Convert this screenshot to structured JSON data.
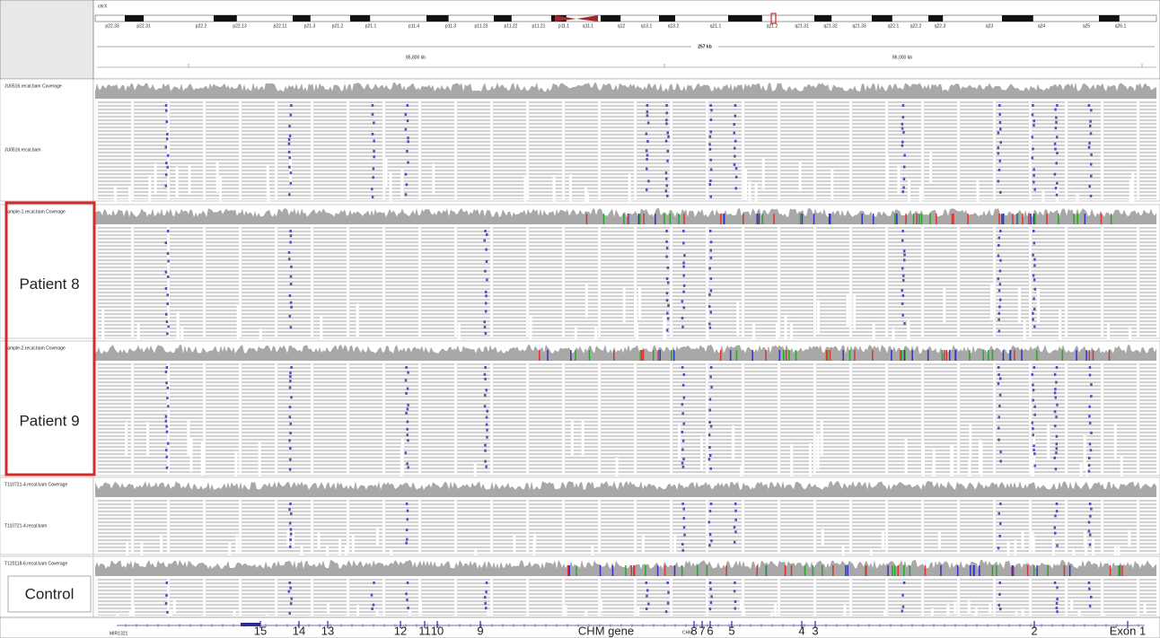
{
  "ideogram": {
    "chromosome": "chrX",
    "bands": [
      "p22.33",
      "p22.31",
      "p22.2",
      "p22.13",
      "p22.11",
      "p21.3",
      "p21.2",
      "p21.1",
      "p11.4",
      "p11.3",
      "p11.23",
      "p11.22",
      "p11.21",
      "p11.1",
      "q11.1",
      "q12",
      "q13.1",
      "q13.2",
      "q21.1",
      "q21.2",
      "q21.31",
      "q21.32",
      "q21.33",
      "q22.1",
      "q22.2",
      "q22.3",
      "q23",
      "q24",
      "q25",
      "q26.1"
    ]
  },
  "ruler": {
    "span": "257 kb",
    "ticks": [
      "85,800 kb",
      "86,000 kb"
    ]
  },
  "tracks": [
    {
      "coverage_label": "JU0516.recal.bam Coverage",
      "reads_label": "JU0516.recal.bam"
    },
    {
      "coverage_label": "Sample-1.recal.bam Coverage",
      "reads_label": "Patient 8"
    },
    {
      "coverage_label": "Sample-2.recal.bam Coverage",
      "reads_label": "Patient 9"
    },
    {
      "coverage_label": "T110721-4.recal.bam Coverage",
      "reads_label": "T110721-4.recal.bam"
    },
    {
      "coverage_label": "T120118-6.recal.bam Coverage",
      "reads_label": "Control"
    }
  ],
  "gene_track": {
    "gene": "CHM gene",
    "small_labels": [
      "MIR1321",
      "CHM"
    ],
    "exons": [
      "15",
      "14",
      "13",
      "12",
      "11",
      "10",
      "9",
      "8",
      "7",
      "6",
      "5",
      "4",
      "3",
      "2",
      "Exon 1"
    ]
  }
}
